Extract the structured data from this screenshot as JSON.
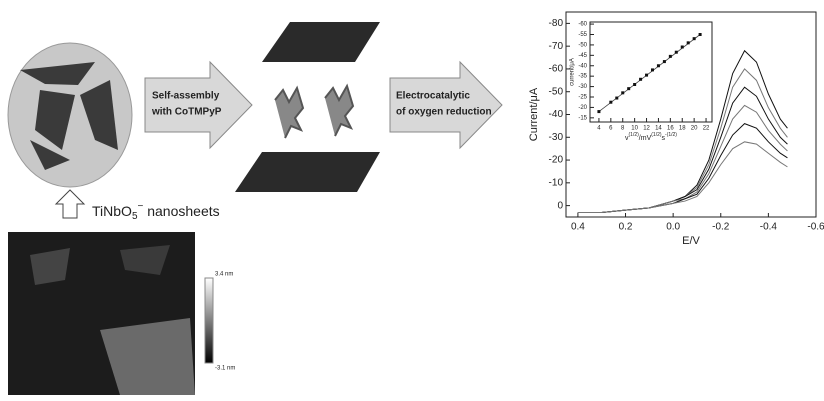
{
  "labels": {
    "arrow1_line1": "Self-assembly",
    "arrow1_line2": "with CoTMPyP",
    "arrow2_line1": "Electrocatalytic",
    "arrow2_line2": "of oxygen reduction",
    "sheet_formula": [
      "TiNbO",
      "5",
      "−",
      " nanosheets"
    ],
    "afm_scale_top": "3.4 nm",
    "afm_scale_bottom": "-3.1 nm"
  },
  "chart_data": [
    {
      "type": "line",
      "x_label": "E/V",
      "y_label": "Current/μA",
      "x": [
        0.4,
        0.3,
        0.2,
        0.1,
        0.0,
        -0.05,
        -0.1,
        -0.15,
        -0.2,
        -0.25,
        -0.3,
        -0.35,
        -0.4,
        -0.45,
        -0.48
      ],
      "series": [
        {
          "color": "#111111",
          "values": [
            3,
            3,
            2,
            1,
            -2,
            -4,
            -9,
            -20,
            -38,
            -58,
            -68,
            -63,
            -49,
            -38,
            -34
          ]
        },
        {
          "color": "#777777",
          "values": [
            3,
            3,
            2,
            1,
            -2,
            -4,
            -8,
            -18,
            -34,
            -52,
            -60,
            -55,
            -43,
            -34,
            -30
          ]
        },
        {
          "color": "#111111",
          "values": [
            3,
            3,
            2,
            1,
            -2,
            -4,
            -7,
            -16,
            -30,
            -45,
            -52,
            -48,
            -38,
            -30,
            -27
          ]
        },
        {
          "color": "#777777",
          "values": [
            3,
            3,
            2,
            1,
            -2,
            -3,
            -6,
            -14,
            -26,
            -38,
            -44,
            -41,
            -33,
            -27,
            -24
          ]
        },
        {
          "color": "#111111",
          "values": [
            3,
            3,
            2,
            1,
            -1,
            -3,
            -5,
            -12,
            -22,
            -31,
            -36,
            -34,
            -28,
            -23,
            -21
          ]
        },
        {
          "color": "#777777",
          "values": [
            3,
            3,
            2,
            1,
            -1,
            -2,
            -4,
            -10,
            -18,
            -25,
            -28,
            -27,
            -23,
            -19,
            -17
          ]
        }
      ],
      "xlim": [
        0.45,
        -0.6
      ],
      "xticks": [
        0.4,
        0.2,
        {
          "value": 0,
          "label": "0.0"
        },
        -0.2,
        -0.4,
        -0.6
      ],
      "ylim": [
        5,
        -85
      ],
      "yticks": [
        0,
        -10,
        -20,
        -30,
        -40,
        -50,
        -60,
        -70,
        -80
      ]
    },
    {
      "type": "scatter",
      "y_label": "current/μA",
      "x_label_parts": [
        {
          "text": "v"
        },
        {
          "text": "(1/2)",
          "sup": true
        },
        {
          "text": "/mV"
        },
        {
          "text": "(1/2)",
          "sup": true
        },
        {
          "text": "s"
        },
        {
          "text": "-(1/2)",
          "sup": true
        }
      ],
      "x": [
        4,
        6,
        7,
        8,
        9,
        10,
        11,
        12,
        13,
        14,
        15,
        16,
        17,
        18,
        19,
        20,
        21
      ],
      "values": [
        -18,
        -22.5,
        -24.5,
        -27,
        -29,
        -31,
        -33.5,
        -35.5,
        -38,
        -40,
        -42,
        -44.5,
        -46.5,
        -49,
        -51,
        -53,
        -55
      ],
      "color": "#111111",
      "fit": {
        "x": [
          4,
          21
        ],
        "values": [
          -18,
          -55
        ]
      },
      "xlim": [
        2.5,
        23
      ],
      "xticks": [
        4,
        6,
        8,
        10,
        12,
        14,
        16,
        18,
        20,
        22
      ],
      "ylim": [
        -13,
        -61
      ],
      "yticks": [
        -15,
        -20,
        -25,
        -30,
        -35,
        -40,
        -45,
        -50,
        -55,
        -60
      ]
    }
  ]
}
